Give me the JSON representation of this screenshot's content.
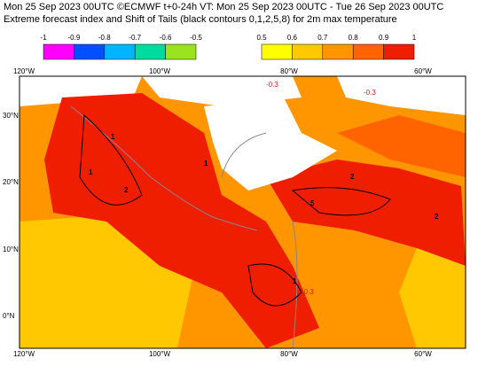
{
  "header": {
    "line1": "Mon 25 Sep 2023 00UTC ©ECMWF t+0-24h  VT: Mon 25 Sep 2023 00UTC - Tue 26 Sep 2023 00UTC",
    "line2": "Extreme forecast index and Shift of Tails (black contours 0,1,2,5,8) for 2m max temperature"
  },
  "colorbar": {
    "negative": {
      "labels": [
        "-1",
        "-0.9",
        "-0.8",
        "-0.7",
        "-0.6",
        "-0.5"
      ],
      "colors": [
        "#ff00ff",
        "#0050ff",
        "#00b4ff",
        "#00dca0",
        "#9be31e"
      ]
    },
    "positive": {
      "labels": [
        "0.5",
        "0.6",
        "0.7",
        "0.8",
        "0.9",
        "1"
      ],
      "colors": [
        "#ffff00",
        "#ffc800",
        "#ff9600",
        "#ff6400",
        "#f01e00"
      ]
    }
  },
  "map": {
    "lon_labels": [
      "120°W",
      "100°W",
      "80°W",
      "60°W"
    ],
    "lat_labels": [
      "30°N",
      "20°N",
      "10°N",
      "0°N"
    ],
    "contour_labels": [
      "1",
      "1",
      "2",
      "1",
      "5",
      "2",
      "1",
      "2",
      "-0.3",
      "-0.3",
      "-0.3"
    ]
  }
}
